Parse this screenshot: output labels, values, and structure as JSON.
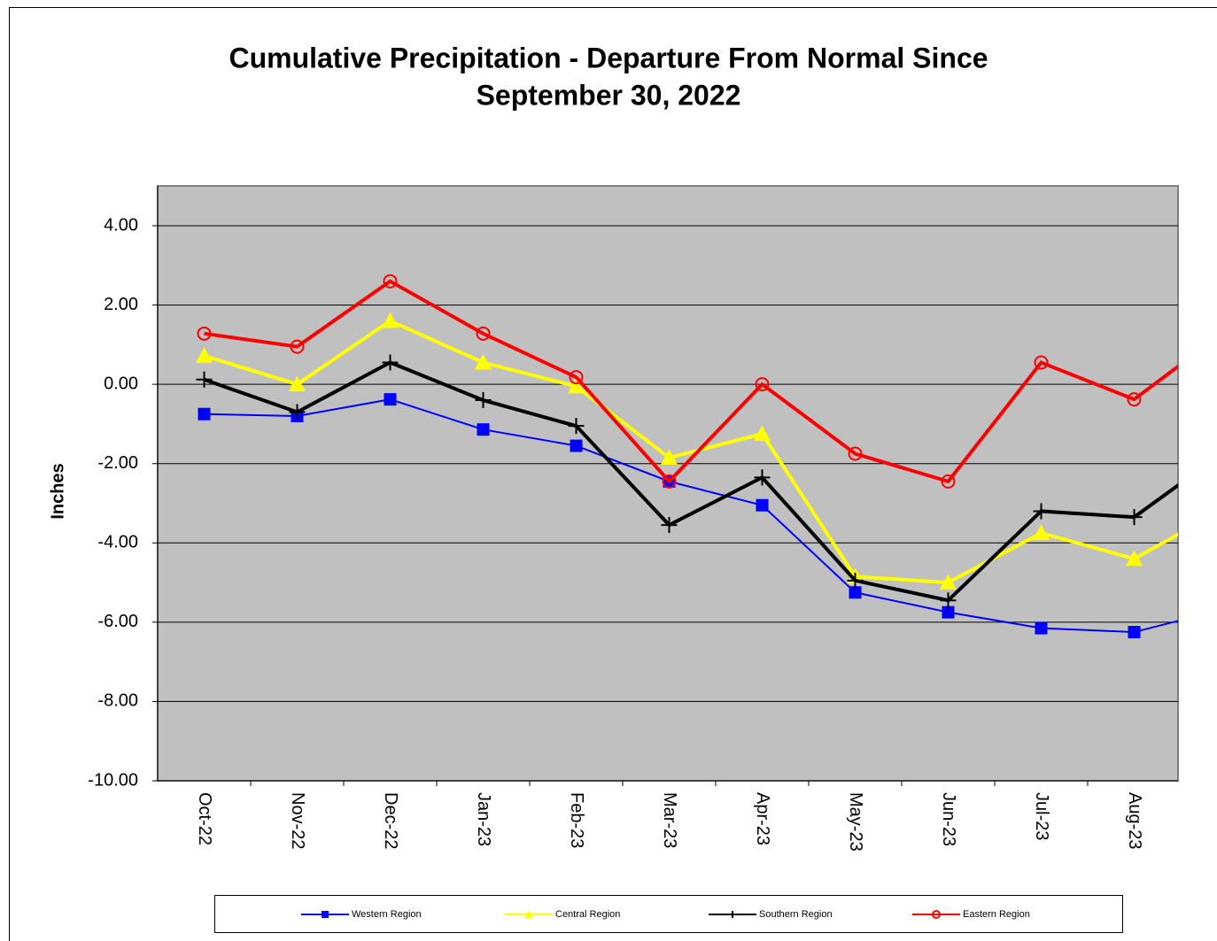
{
  "chart_data": {
    "type": "line",
    "title": "Cumulative Precipitation - Departure From Normal Since",
    "subtitle": "September 30, 2022",
    "y_label": "Inches",
    "categories": [
      "Oct-22",
      "Nov-22",
      "Dec-22",
      "Jan-23",
      "Feb-23",
      "Mar-23",
      "Apr-23",
      "May-23",
      "Jun-23",
      "Jul-23",
      "Aug-23",
      null
    ],
    "series": [
      {
        "name": "Western Region",
        "color": "#0000ff",
        "marker": "square",
        "line_width": 2,
        "values": [
          -0.75,
          -0.8,
          -0.38,
          -1.14,
          -1.55,
          -2.45,
          -3.05,
          -5.25,
          -5.75,
          -6.15,
          -6.25,
          -5.65
        ]
      },
      {
        "name": "Central Region",
        "color": "#ffff00",
        "marker": "triangle",
        "line_width": 4,
        "values": [
          0.72,
          0.0,
          1.6,
          0.55,
          -0.05,
          -1.85,
          -1.25,
          -4.85,
          -5.0,
          -3.75,
          -4.4,
          -3.1
        ]
      },
      {
        "name": "Southern Region",
        "color": "#000000",
        "marker": "plus",
        "line_width": 4,
        "values": [
          0.12,
          -0.7,
          0.55,
          -0.4,
          -1.05,
          -3.55,
          -2.35,
          -4.95,
          -5.45,
          -3.2,
          -3.35,
          -1.65
        ]
      },
      {
        "name": "Eastern Region",
        "color": "#ff0000",
        "marker": "circle",
        "line_width": 4,
        "values": [
          1.28,
          0.95,
          2.6,
          1.28,
          0.18,
          -2.45,
          0.0,
          -1.75,
          -2.45,
          0.55,
          -0.38,
          1.38
        ]
      }
    ],
    "ylim": [
      -10,
      4
    ],
    "yticks": [
      {
        "value": 4,
        "label": "4.00"
      },
      {
        "value": 2,
        "label": "2.00"
      },
      {
        "value": 0,
        "label": "0.00"
      },
      {
        "value": -2,
        "label": "-2.00"
      },
      {
        "value": -4,
        "label": "-4.00"
      },
      {
        "value": -6,
        "label": "-6.00"
      },
      {
        "value": -8,
        "label": "-8.00"
      },
      {
        "value": -10,
        "label": "-10.00"
      }
    ],
    "grid": true,
    "plot_background": "#c0c0c0",
    "legend": "bottom"
  }
}
